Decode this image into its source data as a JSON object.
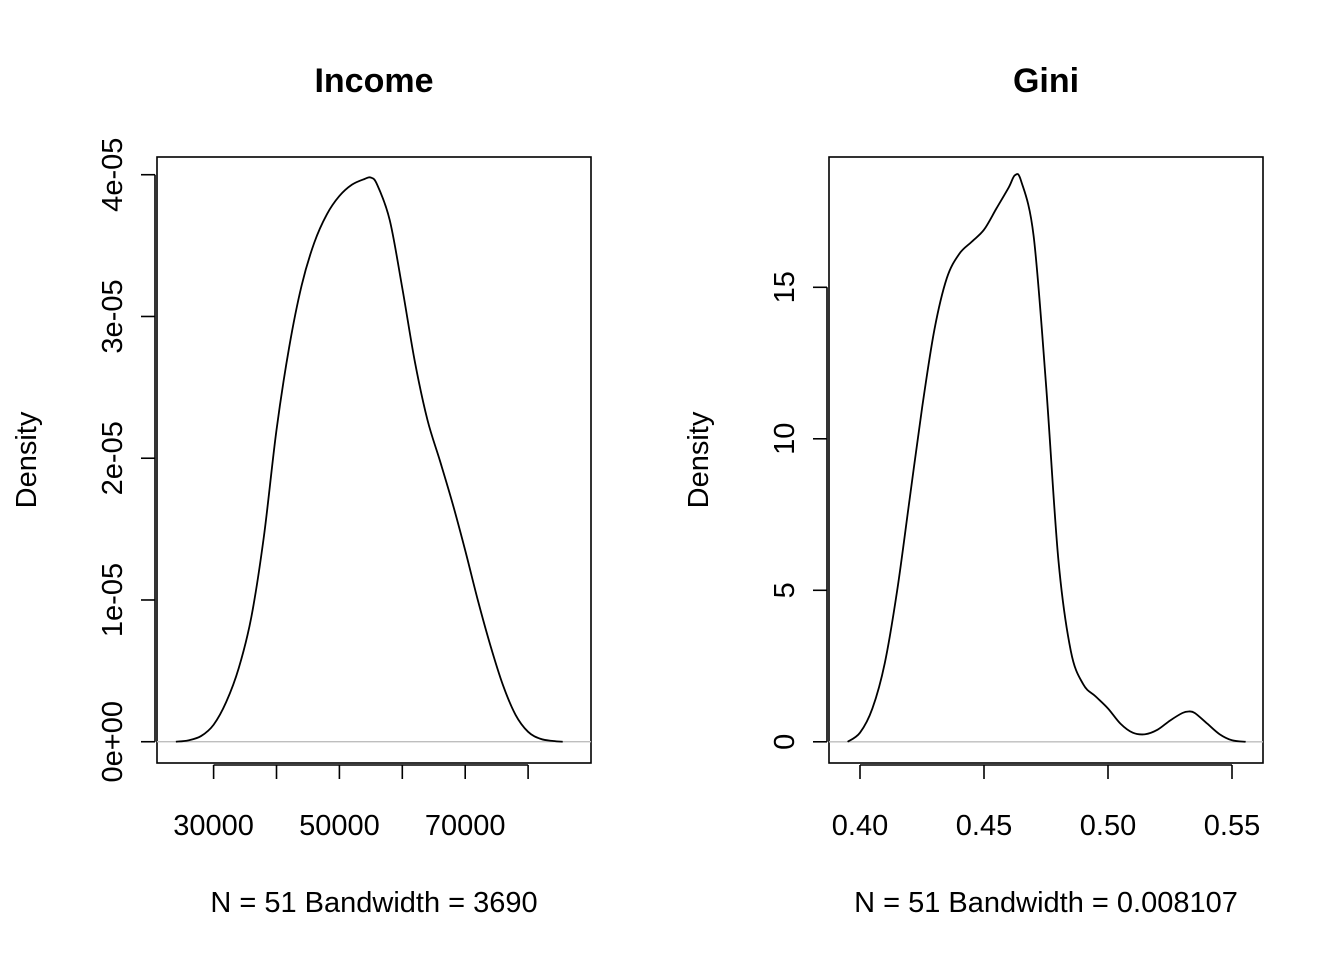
{
  "chart_data": [
    {
      "type": "line",
      "title": "Income",
      "xlabel": "N = 51   Bandwidth = 3690",
      "ylabel": "Density",
      "xlim": [
        21000,
        90000
      ],
      "ylim": [
        -1.5e-06,
        4.125e-05
      ],
      "x_ticks": [
        30000,
        40000,
        50000,
        60000,
        70000,
        80000
      ],
      "x_tick_labels": [
        "30000",
        "",
        "50000",
        "",
        "70000",
        ""
      ],
      "y_ticks": [
        0,
        1e-05,
        2e-05,
        3e-05,
        4e-05
      ],
      "y_tick_labels": [
        "0e+00",
        "1e-05",
        "2e-05",
        "3e-05",
        "4e-05"
      ],
      "baseline": 0,
      "series": [
        {
          "x": [
            24000,
            26000,
            28000,
            30000,
            32000,
            34000,
            36000,
            38000,
            40000,
            42000,
            44000,
            46000,
            48000,
            50000,
            52000,
            54000,
            55000,
            56000,
            58000,
            60000,
            62000,
            64000,
            66000,
            68000,
            70000,
            72000,
            74000,
            76000,
            78000,
            80000,
            82000,
            84000,
            85500
          ],
          "y": [
            0,
            1e-07,
            4e-07,
            1.2e-06,
            2.8e-06,
            5.2e-06,
            8.8e-06,
            1.45e-05,
            2.2e-05,
            2.78e-05,
            3.22e-05,
            3.52e-05,
            3.72e-05,
            3.85e-05,
            3.93e-05,
            3.97e-05,
            3.98e-05,
            3.93e-05,
            3.68e-05,
            3.2e-05,
            2.68e-05,
            2.27e-05,
            1.98e-05,
            1.68e-05,
            1.35e-05,
            1e-05,
            6.8e-06,
            4e-06,
            1.9e-06,
            7e-07,
            2e-07,
            5e-08,
            0
          ]
        }
      ]
    },
    {
      "type": "line",
      "title": "Gini",
      "xlabel": "N = 51   Bandwidth = 0.008107",
      "ylabel": "Density",
      "xlim": [
        0.3875,
        0.5625
      ],
      "ylim": [
        -0.7,
        19.3
      ],
      "x_ticks": [
        0.4,
        0.45,
        0.5,
        0.55
      ],
      "x_tick_labels": [
        "0.40",
        "0.45",
        "0.50",
        "0.55"
      ],
      "y_ticks": [
        0,
        5,
        10,
        15
      ],
      "y_tick_labels": [
        "0",
        "5",
        "10",
        "15"
      ],
      "baseline": 0,
      "series": [
        {
          "x": [
            0.395,
            0.4,
            0.405,
            0.41,
            0.415,
            0.42,
            0.425,
            0.43,
            0.435,
            0.44,
            0.445,
            0.45,
            0.455,
            0.46,
            0.4625,
            0.465,
            0.47,
            0.475,
            0.48,
            0.485,
            0.49,
            0.495,
            0.5,
            0.505,
            0.51,
            0.515,
            0.52,
            0.525,
            0.53,
            0.5325,
            0.535,
            0.54,
            0.545,
            0.55,
            0.5555
          ],
          "y": [
            0,
            0.3,
            1.1,
            2.6,
            5.0,
            8.0,
            11.0,
            13.6,
            15.3,
            16.1,
            16.5,
            16.9,
            17.6,
            18.3,
            18.7,
            18.5,
            16.7,
            11.8,
            6.0,
            3.0,
            1.9,
            1.5,
            1.1,
            0.6,
            0.3,
            0.25,
            0.4,
            0.7,
            0.95,
            1.0,
            0.95,
            0.6,
            0.25,
            0.05,
            0
          ]
        }
      ]
    }
  ]
}
